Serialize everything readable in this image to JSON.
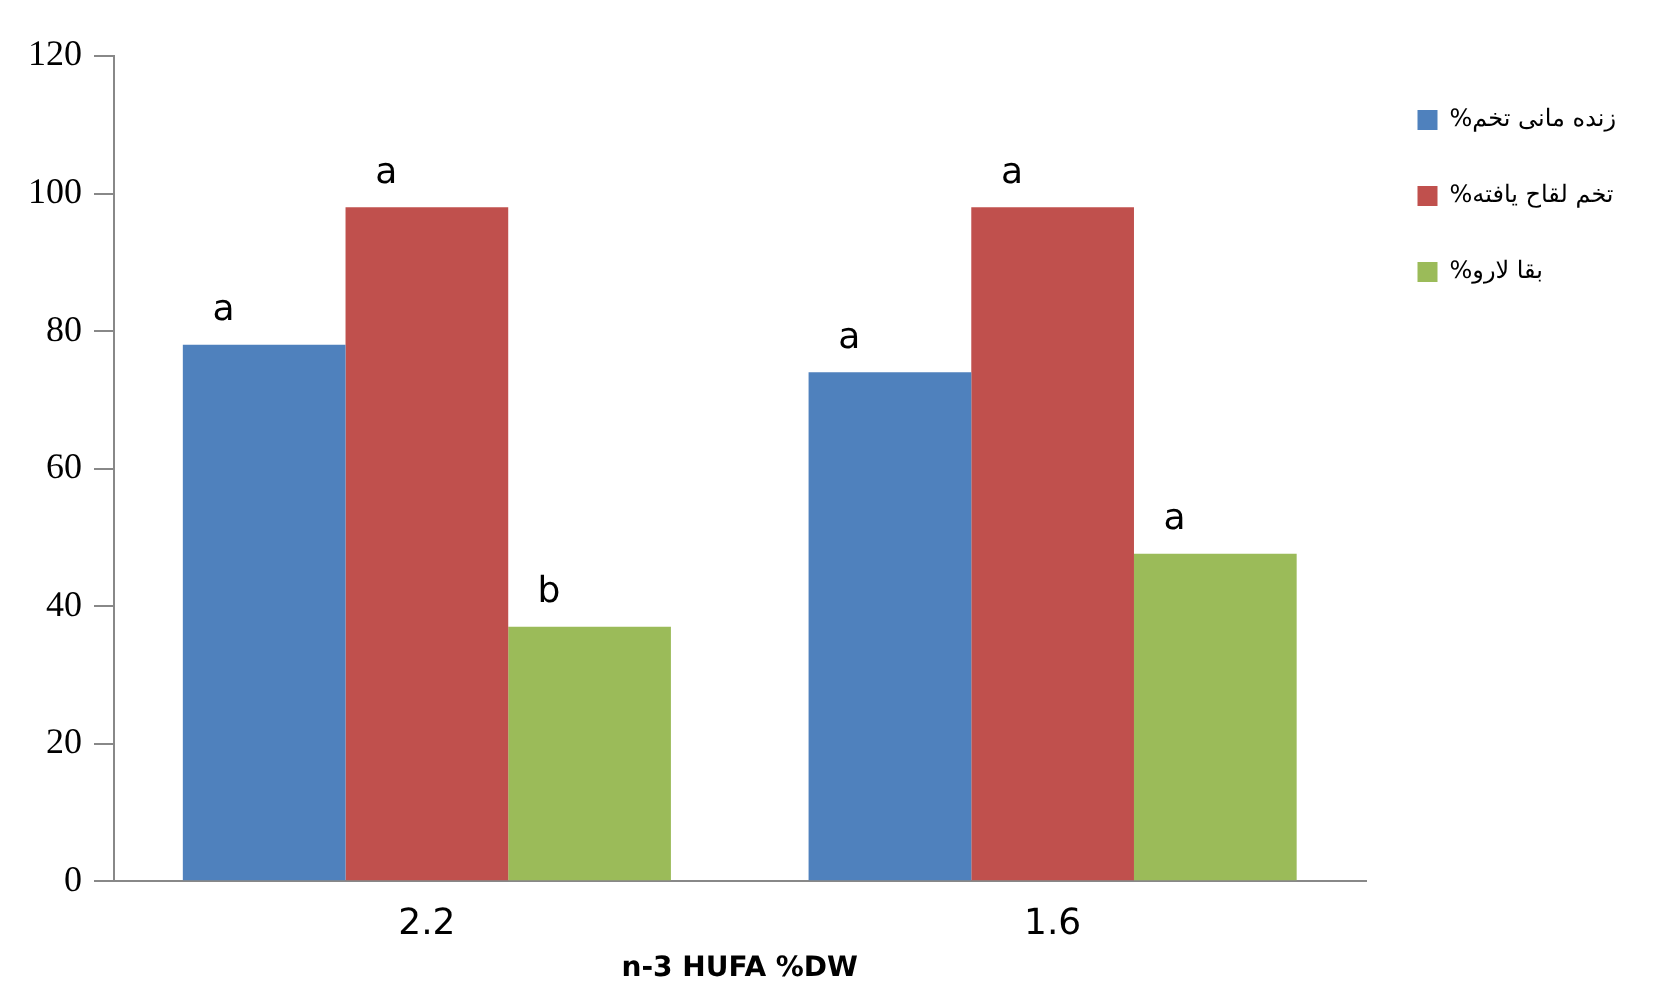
{
  "chart_data": {
    "type": "bar",
    "xlabel": "n-3 HUFA %DW",
    "categories": [
      "2.2",
      "1.6"
    ],
    "series": [
      {
        "name": "%زنده مانی تخم",
        "color": "#4f81bd",
        "values": [
          78,
          74
        ],
        "value_labels": [
          "a",
          "a"
        ]
      },
      {
        "name": "%تخم لقاح یافته",
        "color": "#c0504d",
        "values": [
          98,
          98
        ],
        "value_labels": [
          "a",
          "a"
        ]
      },
      {
        "name": "%بقا لارو",
        "color": "#9bbb59",
        "values": [
          37,
          47.6
        ],
        "value_labels": [
          "b",
          "a"
        ]
      }
    ],
    "ylim": [
      0,
      120
    ],
    "yticks": [
      0,
      20,
      40,
      60,
      80,
      100,
      120
    ],
    "grid": false,
    "legend": "top right"
  }
}
